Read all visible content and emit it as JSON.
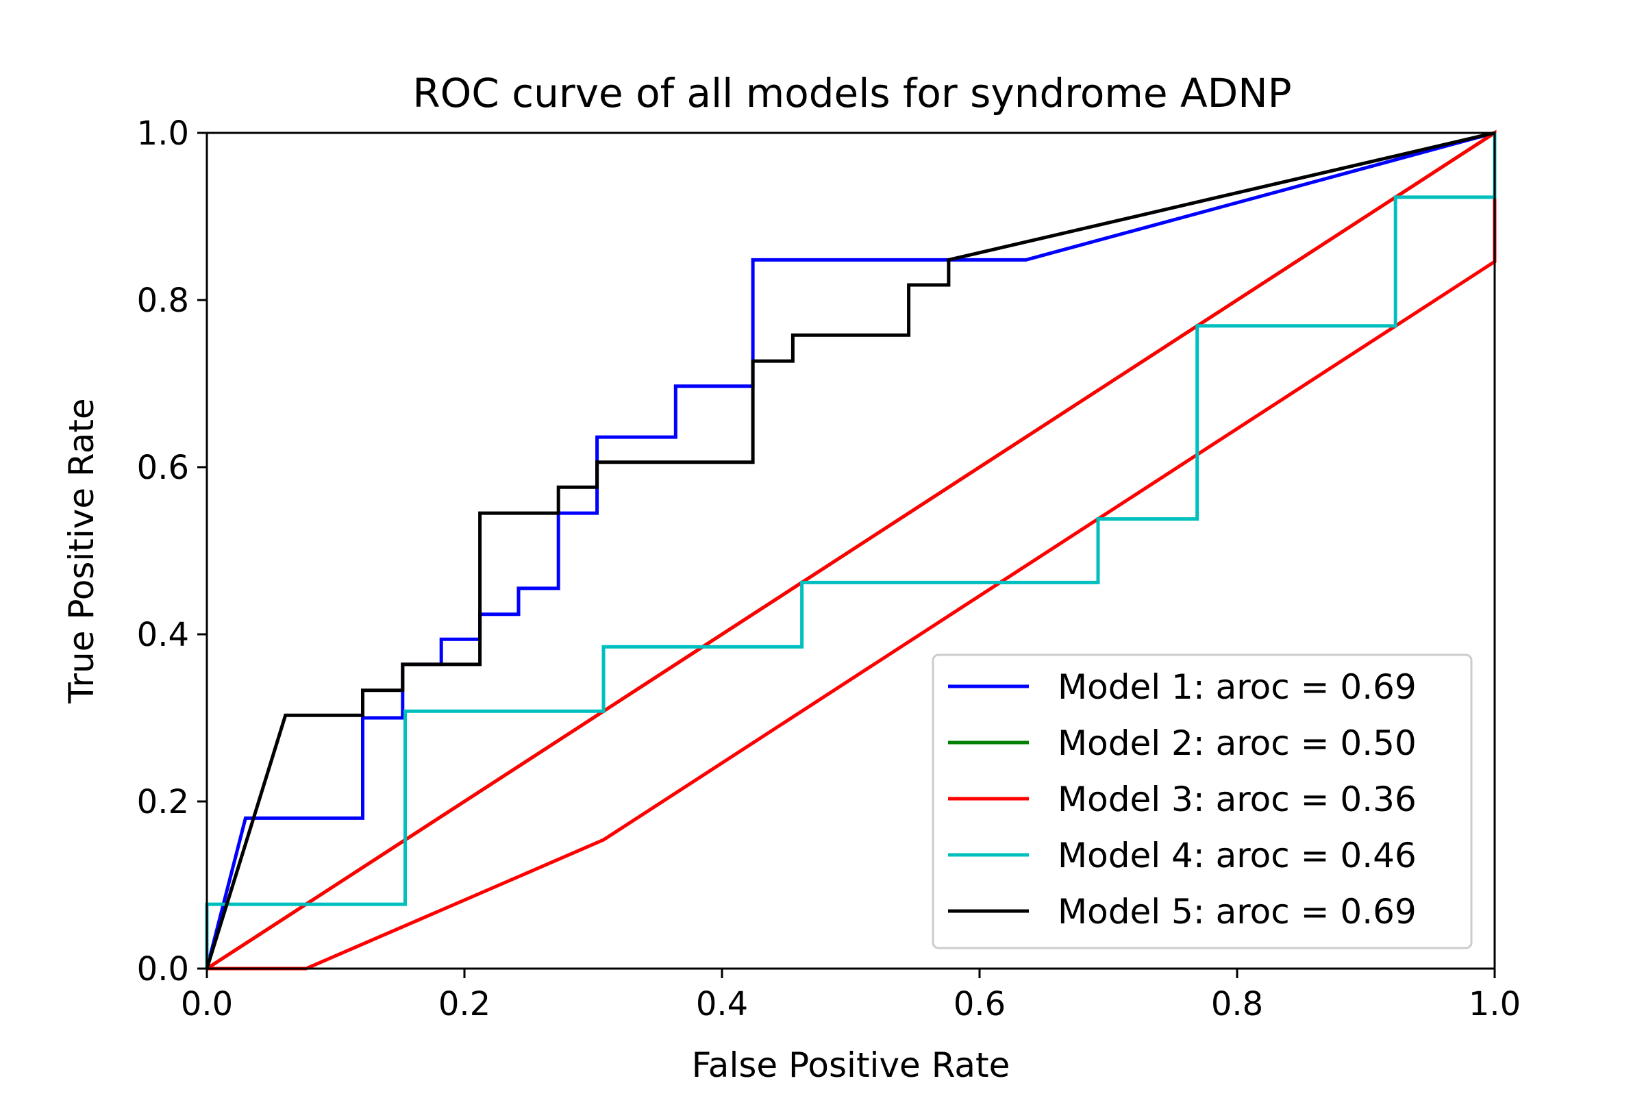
{
  "chart_data": {
    "type": "line",
    "title": "ROC curve of all models for syndrome ADNP",
    "xlabel": "False Positive Rate",
    "ylabel": "True Positive Rate",
    "xlim": [
      0.0,
      1.0
    ],
    "ylim": [
      0.0,
      1.0
    ],
    "xticks": [
      "0.0",
      "0.2",
      "0.4",
      "0.6",
      "0.8",
      "1.0"
    ],
    "yticks": [
      "0.0",
      "0.2",
      "0.4",
      "0.6",
      "0.8",
      "1.0"
    ],
    "grid": false,
    "legend_position": "lower-right",
    "series": [
      {
        "name": "Model 1: aroc = 0.69",
        "color": "#0000ff",
        "points": [
          [
            0,
            0
          ],
          [
            0.03,
            0.18
          ],
          [
            0.121,
            0.18
          ],
          [
            0.121,
            0.3
          ],
          [
            0.152,
            0.3
          ],
          [
            0.152,
            0.364
          ],
          [
            0.182,
            0.364
          ],
          [
            0.182,
            0.394
          ],
          [
            0.212,
            0.394
          ],
          [
            0.212,
            0.424
          ],
          [
            0.242,
            0.424
          ],
          [
            0.242,
            0.455
          ],
          [
            0.273,
            0.455
          ],
          [
            0.273,
            0.545
          ],
          [
            0.303,
            0.545
          ],
          [
            0.303,
            0.636
          ],
          [
            0.364,
            0.636
          ],
          [
            0.364,
            0.697
          ],
          [
            0.424,
            0.697
          ],
          [
            0.424,
            0.848
          ],
          [
            0.636,
            0.848
          ],
          [
            1.0,
            1.0
          ]
        ]
      },
      {
        "name": "Model 2: aroc = 0.50",
        "color": "#008000",
        "points": [
          [
            0,
            0
          ],
          [
            1.0,
            1.0
          ]
        ]
      },
      {
        "name": "Model 3: aroc = 0.36",
        "color": "#ff0000",
        "points": [
          [
            0,
            0
          ],
          [
            0.077,
            0
          ],
          [
            0.308,
            0.154
          ],
          [
            1.0,
            0.846
          ],
          [
            1.0,
            1.0
          ],
          [
            0,
            0
          ]
        ]
      },
      {
        "name": "Model 4: aroc = 0.46",
        "color": "#00bfbf",
        "points": [
          [
            0,
            0
          ],
          [
            0,
            0.077
          ],
          [
            0.154,
            0.077
          ],
          [
            0.154,
            0.308
          ],
          [
            0.308,
            0.308
          ],
          [
            0.308,
            0.385
          ],
          [
            0.462,
            0.385
          ],
          [
            0.462,
            0.462
          ],
          [
            0.692,
            0.462
          ],
          [
            0.692,
            0.538
          ],
          [
            0.769,
            0.538
          ],
          [
            0.769,
            0.769
          ],
          [
            0.923,
            0.769
          ],
          [
            0.923,
            0.923
          ],
          [
            1.0,
            0.923
          ],
          [
            1.0,
            1.0
          ]
        ]
      },
      {
        "name": "Model 5: aroc = 0.69",
        "color": "#000000",
        "points": [
          [
            0,
            0
          ],
          [
            0.061,
            0.303
          ],
          [
            0.121,
            0.303
          ],
          [
            0.121,
            0.333
          ],
          [
            0.152,
            0.333
          ],
          [
            0.152,
            0.364
          ],
          [
            0.212,
            0.364
          ],
          [
            0.212,
            0.545
          ],
          [
            0.273,
            0.545
          ],
          [
            0.273,
            0.576
          ],
          [
            0.303,
            0.576
          ],
          [
            0.303,
            0.606
          ],
          [
            0.424,
            0.606
          ],
          [
            0.424,
            0.727
          ],
          [
            0.455,
            0.727
          ],
          [
            0.455,
            0.758
          ],
          [
            0.545,
            0.758
          ],
          [
            0.545,
            0.818
          ],
          [
            0.576,
            0.818
          ],
          [
            0.576,
            0.848
          ],
          [
            1.0,
            1.0
          ]
        ]
      }
    ]
  }
}
